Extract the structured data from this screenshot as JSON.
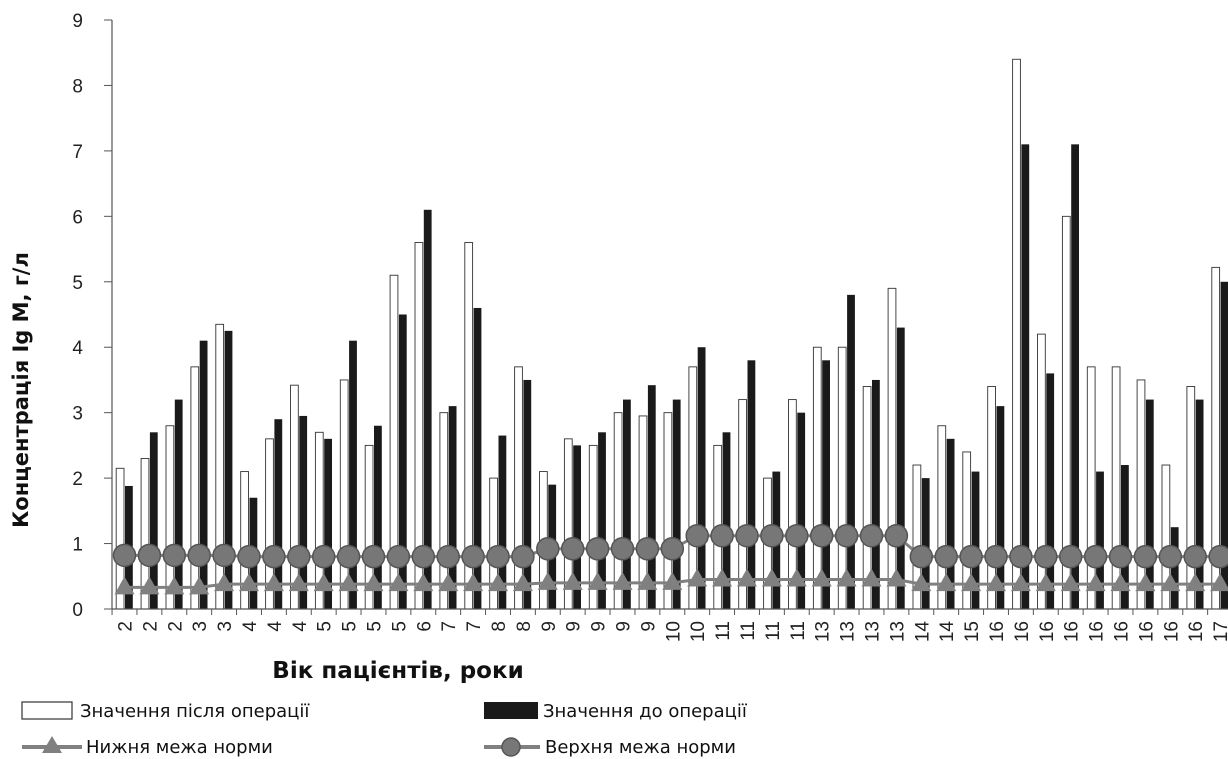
{
  "chart_data": {
    "type": "bar",
    "xlabel": "Вік пацієнтів, роки",
    "ylabel": "Концентрація Ig M, г/л",
    "ylim": [
      0,
      9
    ],
    "yticks": [
      "0",
      "1",
      "2",
      "3",
      "4",
      "5",
      "6",
      "7",
      "8",
      "9"
    ],
    "grid": false,
    "legend_position": "bottom",
    "categories": [
      "2",
      "2",
      "2",
      "3",
      "3",
      "4",
      "4",
      "4",
      "5",
      "5",
      "5",
      "5",
      "6",
      "7",
      "7",
      "8",
      "8",
      "9",
      "9",
      "9",
      "9",
      "9",
      "10",
      "10",
      "11",
      "11",
      "11",
      "11",
      "13",
      "13",
      "13",
      "13",
      "14",
      "14",
      "15",
      "16",
      "16",
      "16",
      "16",
      "16",
      "16",
      "16",
      "16",
      "16",
      "17"
    ],
    "series": [
      {
        "name": "Значення після операції",
        "kind": "bar",
        "color": "#ffffff",
        "values": [
          2.15,
          2.3,
          2.8,
          3.7,
          4.35,
          2.1,
          2.6,
          3.42,
          2.7,
          3.5,
          2.5,
          5.1,
          5.6,
          3.0,
          5.6,
          2.0,
          3.7,
          2.1,
          2.6,
          2.5,
          3.0,
          2.95,
          3.0,
          3.7,
          2.5,
          3.2,
          2.0,
          3.2,
          4.0,
          4.0,
          3.4,
          4.9,
          2.2,
          2.8,
          2.4,
          3.4,
          8.4,
          4.2,
          6.0,
          3.7,
          3.7,
          3.5,
          2.2,
          3.4,
          5.22
        ]
      },
      {
        "name": "Значення до операції",
        "kind": "bar",
        "color": "#1a1a1a",
        "values": [
          1.88,
          2.7,
          3.2,
          4.1,
          4.25,
          1.7,
          2.9,
          2.95,
          2.6,
          4.1,
          2.8,
          4.5,
          6.1,
          3.1,
          4.6,
          2.65,
          3.5,
          1.9,
          2.5,
          2.7,
          3.2,
          3.42,
          3.2,
          4.0,
          2.7,
          3.8,
          2.1,
          3.0,
          3.8,
          4.8,
          3.5,
          4.3,
          2.0,
          2.6,
          2.1,
          3.1,
          7.1,
          3.6,
          7.1,
          2.1,
          2.2,
          3.2,
          1.25,
          3.2,
          5.0
        ]
      },
      {
        "name": "Нижня межа норми",
        "kind": "line",
        "marker": "triangle",
        "color": "#808080",
        "values": [
          0.33,
          0.33,
          0.33,
          0.33,
          0.38,
          0.38,
          0.38,
          0.38,
          0.38,
          0.38,
          0.38,
          0.38,
          0.38,
          0.38,
          0.38,
          0.38,
          0.38,
          0.4,
          0.4,
          0.4,
          0.4,
          0.4,
          0.4,
          0.45,
          0.45,
          0.45,
          0.45,
          0.45,
          0.45,
          0.45,
          0.45,
          0.45,
          0.38,
          0.38,
          0.38,
          0.38,
          0.38,
          0.38,
          0.38,
          0.38,
          0.38,
          0.38,
          0.38,
          0.38,
          0.38
        ]
      },
      {
        "name": "Верхня межа норми",
        "kind": "line",
        "marker": "circle",
        "color": "#808080",
        "values": [
          0.82,
          0.82,
          0.82,
          0.82,
          0.82,
          0.8,
          0.8,
          0.8,
          0.8,
          0.8,
          0.8,
          0.8,
          0.8,
          0.8,
          0.8,
          0.8,
          0.8,
          0.92,
          0.92,
          0.92,
          0.92,
          0.92,
          0.92,
          1.12,
          1.12,
          1.12,
          1.12,
          1.12,
          1.12,
          1.12,
          1.12,
          1.12,
          0.8,
          0.8,
          0.8,
          0.8,
          0.8,
          0.8,
          0.8,
          0.8,
          0.8,
          0.8,
          0.8,
          0.8,
          0.8
        ]
      }
    ]
  }
}
